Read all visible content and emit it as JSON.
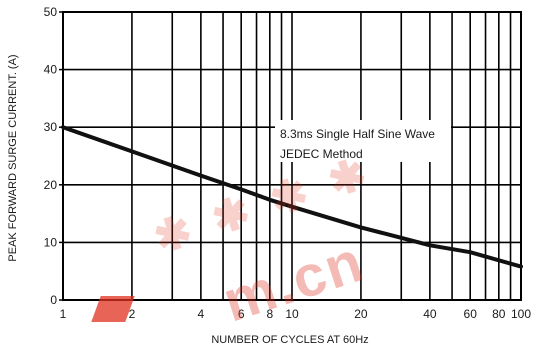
{
  "chart_data": {
    "type": "line",
    "title": "",
    "xlabel": "NUMBER OF CYCLES AT 60Hz",
    "ylabel": "PEAK FORWARD SURGE CURRENT. (A)",
    "x_scale": "log",
    "xlim": [
      1,
      100
    ],
    "ylim": [
      0,
      50
    ],
    "x_ticks": [
      1,
      2,
      4,
      6,
      8,
      10,
      20,
      40,
      60,
      80,
      100
    ],
    "x_minor_ticks": [
      3,
      5,
      7,
      9,
      30,
      50,
      70,
      90
    ],
    "y_ticks": [
      0,
      10,
      20,
      30,
      40,
      50
    ],
    "grid": true,
    "series": [
      {
        "x": [
          1,
          2,
          4,
          6,
          8,
          10,
          20,
          40,
          60,
          100
        ],
        "y": [
          30,
          25.8,
          21.6,
          19.2,
          17.4,
          16.2,
          12.6,
          9.5,
          8.3,
          5.8
        ],
        "color": "#111111"
      }
    ],
    "annotation": {
      "lines": [
        "8.3ms Single Half Sine Wave",
        "JEDEC Method"
      ]
    },
    "watermark_color": "#e0301e"
  }
}
